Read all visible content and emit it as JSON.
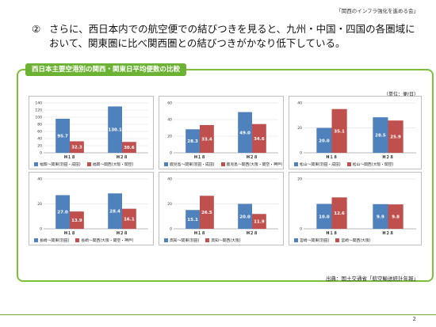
{
  "org_label": "「関西のインフラ強化を進める会」",
  "heading": {
    "number": "②",
    "line1": "さらに、西日本内での航空便での結びつきを見ると、九州・中国・四国の各圏域に",
    "line2": "おいて、関東圏に比べ関西圏との結びつきがかなり低下している。"
  },
  "panel_title": "西日本主要空港別の関西・関東日平均便数の比較",
  "unit_label": "（単位：便/日）",
  "source": "出典：国土交通省「航空輸送統計年報」",
  "page_number": "2",
  "colors": {
    "kanto": "#4f81bd",
    "kansai": "#c0504d",
    "accent": "#6cb233"
  },
  "chart_data": [
    {
      "type": "bar",
      "categories": [
        "H１８",
        "H２８"
      ],
      "ylim": [
        0,
        140
      ],
      "yticks": [
        0,
        20,
        40,
        60,
        80,
        100,
        120,
        140
      ],
      "series": [
        {
          "name": "福岡～関東(羽田・成田)",
          "values": [
            95.7,
            130.1
          ]
        },
        {
          "name": "福岡～関西(大阪・関空)",
          "values": [
            32.3,
            30.6
          ]
        }
      ]
    },
    {
      "type": "bar",
      "categories": [
        "H１８",
        "H２８"
      ],
      "ylim": [
        0,
        60
      ],
      "yticks": [
        0,
        20,
        40,
        60
      ],
      "series": [
        {
          "name": "鹿児島～関東(羽田・成田)",
          "values": [
            28.3,
            49.0
          ]
        },
        {
          "name": "鹿児島～関西(大阪・関空・神戸)",
          "values": [
            33.4,
            34.6
          ]
        }
      ]
    },
    {
      "type": "bar",
      "categories": [
        "H１８",
        "H２８"
      ],
      "ylim": [
        0,
        40
      ],
      "yticks": [
        0,
        20,
        40
      ],
      "series": [
        {
          "name": "松山～関東(羽田・成田)",
          "values": [
            20.0,
            28.5
          ]
        },
        {
          "name": "松山～関西(大阪・関空)",
          "values": [
            35.1,
            25.9
          ]
        }
      ]
    },
    {
      "type": "bar",
      "categories": [
        "H１８",
        "H２８"
      ],
      "ylim": [
        0,
        40
      ],
      "yticks": [
        0,
        20,
        40
      ],
      "series": [
        {
          "name": "長崎～関東(羽田)",
          "values": [
            27.0,
            28.4
          ]
        },
        {
          "name": "長崎～関西(大阪・関空・神戸)",
          "values": [
            13.9,
            16.1
          ]
        }
      ]
    },
    {
      "type": "bar",
      "categories": [
        "H１８",
        "H２８"
      ],
      "ylim": [
        0,
        40
      ],
      "yticks": [
        0,
        20,
        40
      ],
      "series": [
        {
          "name": "高知～関東(羽田)",
          "values": [
            15.1,
            20.0
          ]
        },
        {
          "name": "高知～関西(大阪)",
          "values": [
            26.5,
            11.9
          ]
        }
      ]
    },
    {
      "type": "bar",
      "categories": [
        "H１８",
        "H２８"
      ],
      "ylim": [
        0,
        20
      ],
      "yticks": [
        0,
        20
      ],
      "series": [
        {
          "name": "宮崎～関東(羽田)",
          "values": [
            10.0,
            9.9
          ]
        },
        {
          "name": "宮崎～関西(大阪)",
          "values": [
            12.6,
            9.8
          ]
        }
      ]
    }
  ]
}
